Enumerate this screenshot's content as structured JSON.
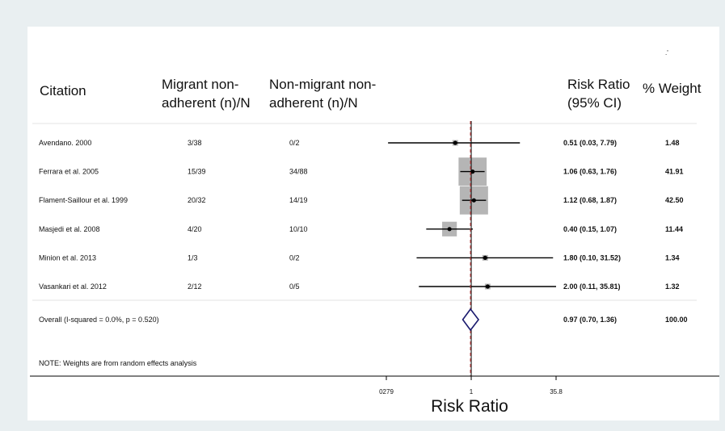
{
  "headers": {
    "citation": "Citation",
    "migrant_line1": "Migrant non-",
    "migrant_line2": "adherent (n)/N",
    "nonmigrant_line1": "Non-migrant non-",
    "nonmigrant_line2": "adherent (n)/N",
    "rr_line1": "Risk Ratio",
    "rr_line2": "(95% CI)",
    "weight": "% Weight"
  },
  "stray_mark": ".'",
  "note": "NOTE: Weights are from random effects analysis",
  "colors": {
    "background": "#e9eff1",
    "panel": "#ffffff",
    "weight_box": "#b5b5b5",
    "diamond": "#1a1a6e",
    "line": "#000000"
  },
  "chart_data": {
    "type": "forest",
    "title": "",
    "xlabel": "Risk Ratio",
    "x_scale": "log",
    "x_ticks": [
      "0279",
      "1",
      "35.8"
    ],
    "xlim": [
      0.0279,
      35.8
    ],
    "reference_line": 1,
    "studies": [
      {
        "citation": "Avendano. 2000",
        "migrant": "3/38",
        "nonmigrant": "0/2",
        "rr": 0.51,
        "lo": 0.03,
        "hi": 7.79,
        "rr_text": "0.51 (0.03, 7.79)",
        "weight": 1.48,
        "weight_text": "1.48"
      },
      {
        "citation": "Ferrara et al. 2005",
        "migrant": "15/39",
        "nonmigrant": "34/88",
        "rr": 1.06,
        "lo": 0.63,
        "hi": 1.76,
        "rr_text": "1.06 (0.63, 1.76)",
        "weight": 41.91,
        "weight_text": "41.91"
      },
      {
        "citation": "Flament-Saillour et al. 1999",
        "migrant": "20/32",
        "nonmigrant": "14/19",
        "rr": 1.12,
        "lo": 0.68,
        "hi": 1.87,
        "rr_text": "1.12 (0.68, 1.87)",
        "weight": 42.5,
        "weight_text": "42.50"
      },
      {
        "citation": "Masjedi et al. 2008",
        "migrant": "4/20",
        "nonmigrant": "10/10",
        "rr": 0.4,
        "lo": 0.15,
        "hi": 1.07,
        "rr_text": "0.40 (0.15, 1.07)",
        "weight": 11.44,
        "weight_text": "11.44"
      },
      {
        "citation": "Minion et al. 2013",
        "migrant": "1/3",
        "nonmigrant": "0/2",
        "rr": 1.8,
        "lo": 0.1,
        "hi": 31.52,
        "rr_text": "1.80 (0.10, 31.52)",
        "weight": 1.34,
        "weight_text": "1.34"
      },
      {
        "citation": "Vasankari et al. 2012",
        "migrant": "2/12",
        "nonmigrant": "0/5",
        "rr": 2.0,
        "lo": 0.11,
        "hi": 35.81,
        "rr_text": "2.00 (0.11, 35.81)",
        "weight": 1.32,
        "weight_text": "1.32"
      }
    ],
    "overall": {
      "label": "Overall  (I-squared = 0.0%, p = 0.520)",
      "rr": 0.97,
      "lo": 0.7,
      "hi": 1.36,
      "rr_text": "0.97 (0.70, 1.36)",
      "weight_text": "100.00"
    }
  }
}
